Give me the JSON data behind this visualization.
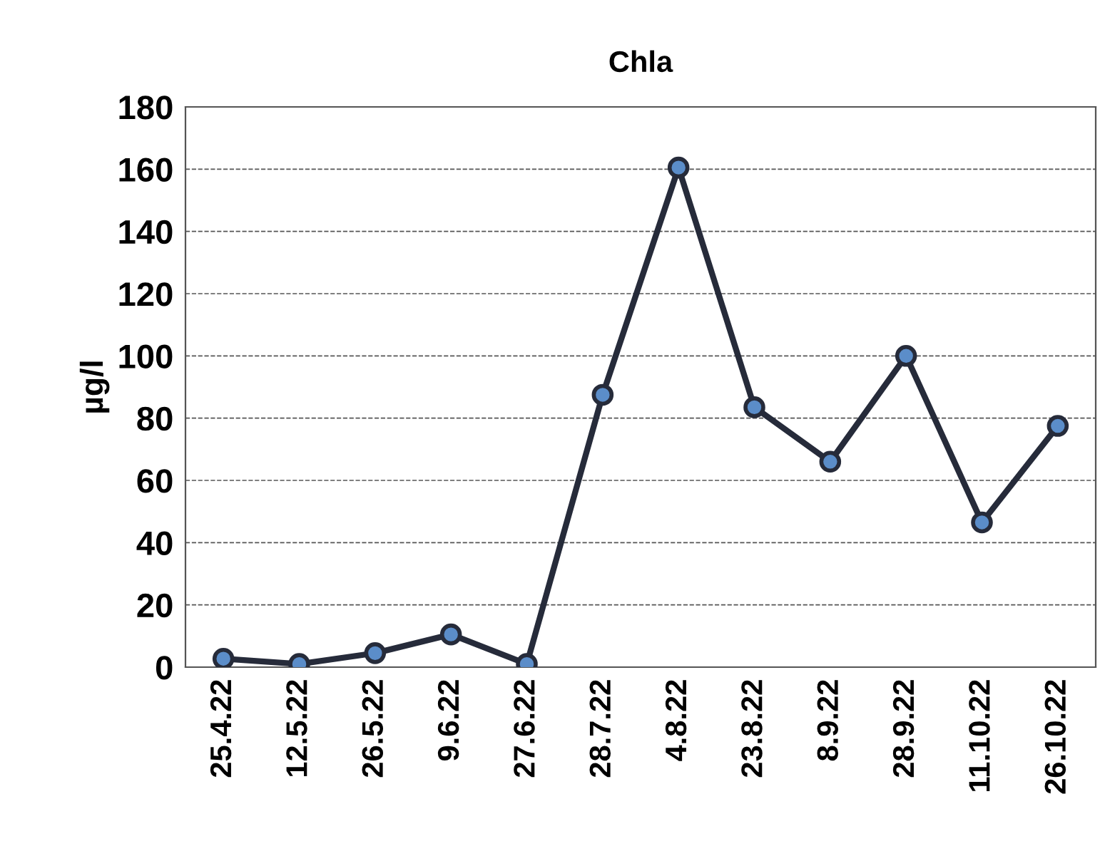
{
  "chart_data": {
    "type": "line",
    "title": "Chla",
    "ylabel": "µg/l",
    "categories": [
      "25.4.22",
      "12.5.22",
      "26.5.22",
      "9.6.22",
      "27.6.22",
      "28.7.22",
      "4.8.22",
      "23.8.22",
      "8.9.22",
      "28.9.22",
      "11.10.22",
      "26.10.22"
    ],
    "series": [
      {
        "color": "#262b3a",
        "values": [
          2.7,
          1,
          4.5,
          10.5,
          1,
          87.5,
          160.5,
          83.5,
          66,
          100,
          46.5,
          77.5
        ]
      }
    ],
    "ylim": [
      0,
      180
    ],
    "yticks": [
      0,
      20,
      40,
      60,
      80,
      100,
      120,
      140,
      160,
      180
    ],
    "grid": "y",
    "marker": "circle",
    "line_style": "solid",
    "legend": false
  }
}
